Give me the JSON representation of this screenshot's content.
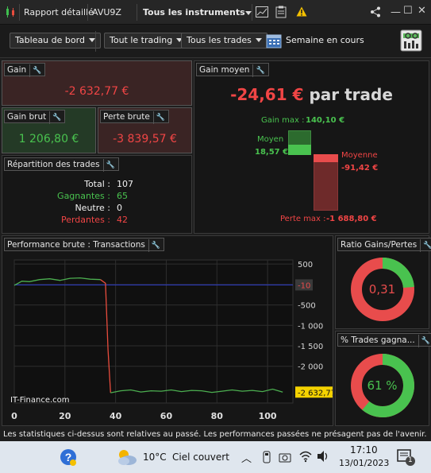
{
  "titlebar": {
    "report_label": "Rapport détaillé",
    "account_label": "AVU9Z",
    "instruments_label": "Tous les instruments",
    "warning_icon": "warning-icon",
    "accent": "#f4c000"
  },
  "toolbar": {
    "dashboard_label": "Tableau de bord",
    "trading_label": "Tout le trading",
    "trades_label": "Tous les trades",
    "period_label": "Semaine en cours"
  },
  "gain": {
    "title": "Gain",
    "value": "-2 632,77 €"
  },
  "gain_brut": {
    "title": "Gain brut",
    "value": "1 206,80 €"
  },
  "perte_brute": {
    "title": "Perte brute",
    "value": "-3 839,57 €"
  },
  "gain_moyen": {
    "title": "Gain moyen",
    "value": "-24,61 €",
    "suffix": "par trade",
    "gain_max_label": "Gain max :",
    "gain_max_value": "140,10 €",
    "moyen_label": "Moyen",
    "moyen_value": "18,57 €",
    "moyenne_label": "Moyenne",
    "moyenne_value": "-91,42 €",
    "perte_max_label": "Perte max :",
    "perte_max_value": "-1 688,80 €"
  },
  "repartition": {
    "title": "Répartition des trades",
    "total_label": "Total :",
    "total_value": "107",
    "gagnantes_label": "Gagnantes :",
    "gagnantes_value": "65",
    "neutre_label": "Neutre :",
    "neutre_value": "0",
    "perdantes_label": "Perdantes :",
    "perdantes_value": "42"
  },
  "performance": {
    "title": "Performance brute : Transactions",
    "watermark": "IT-Finance.com",
    "y_ticks": [
      "500",
      "-10",
      "-500",
      "-1 000",
      "-1 500",
      "-2 000",
      "-2 632,77"
    ],
    "x_ticks": [
      "0",
      "20",
      "40",
      "60",
      "80",
      "100"
    ]
  },
  "ratio": {
    "title": "Ratio Gains/Pertes",
    "value": "0,31",
    "fraction": 0.237
  },
  "pct_gagnants": {
    "title": "% Trades gagna...",
    "value": "61 %",
    "fraction": 0.61
  },
  "disclaimer": "Les statistiques ci-dessus sont relatives au passé. Les performances passées ne présagent pas de l'avenir.",
  "taskbar": {
    "weather_temp": "10°C",
    "weather_desc": "Ciel couvert",
    "time": "17:10",
    "date": "13/01/2023",
    "notif_count": "1"
  },
  "chart_data": {
    "type": "line",
    "title": "Performance brute : Transactions",
    "xlim": [
      0,
      110
    ],
    "ylim": [
      -2900,
      600
    ],
    "x_ticks": [
      0,
      20,
      40,
      60,
      80,
      100
    ],
    "y_ticks": [
      500,
      0,
      -500,
      -1000,
      -1500,
      -2000
    ],
    "reference_line": -10,
    "last_value": -2632.77,
    "series": [
      {
        "color": "#4caf50",
        "x": [
          0,
          3,
          6,
          10,
          14,
          18,
          22,
          26,
          30,
          34
        ],
        "y": [
          -20,
          80,
          70,
          120,
          140,
          100,
          150,
          160,
          130,
          120
        ]
      },
      {
        "color": "#e84c3d",
        "x": [
          34,
          36,
          37,
          38
        ],
        "y": [
          120,
          30,
          -1600,
          -2650
        ]
      },
      {
        "color": "#4caf50",
        "x": [
          38,
          42,
          46,
          50,
          54,
          58,
          62,
          66,
          70,
          74,
          78,
          82,
          86,
          90,
          94,
          98,
          102,
          106
        ],
        "y": [
          -2650,
          -2600,
          -2580,
          -2630,
          -2600,
          -2610,
          -2580,
          -2620,
          -2590,
          -2600,
          -2640,
          -2610,
          -2580,
          -2610,
          -2590,
          -2620,
          -2560,
          -2633
        ]
      }
    ]
  }
}
